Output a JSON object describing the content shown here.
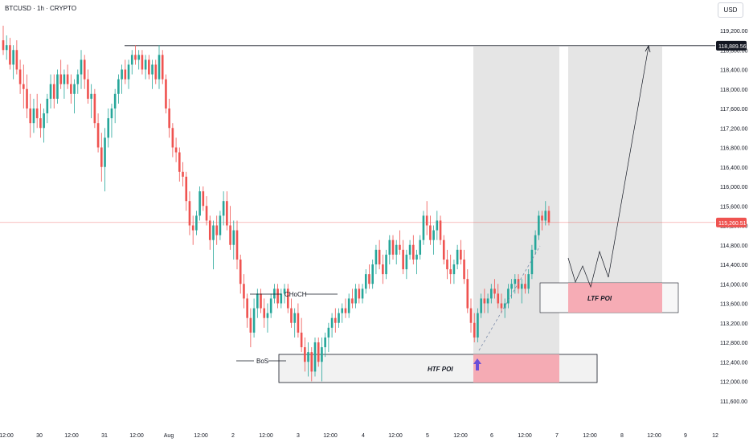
{
  "header": {
    "symbol": "BTCUSD · 1h · CRYPTO",
    "currency": "USD"
  },
  "price_labels": {
    "resistance": "118,889.56",
    "current": "115,260.51"
  },
  "annotations": {
    "choch": "CHoCH",
    "bos": "BoS",
    "htf_poi": "HTF POI",
    "ltf_poi": "LTF POI"
  },
  "chart_data": {
    "type": "candlestick",
    "instrument": "BTCUSD",
    "interval": "1h",
    "y_range": [
      111400,
      119500
    ],
    "y_ticks": [
      111600,
      112000,
      112400,
      112800,
      113200,
      113600,
      114000,
      114400,
      114800,
      115200,
      115600,
      116000,
      116400,
      116800,
      117200,
      117600,
      118000,
      118400,
      118800,
      119200
    ],
    "y_tick_labels": [
      "111,600.00",
      "112,000.00",
      "112,400.00",
      "112,800.00",
      "113,200.00",
      "113,600.00",
      "114,000.00",
      "114,400.00",
      "114,800.00",
      "115,200.00",
      "115,600.00",
      "116,000.00",
      "116,400.00",
      "116,800.00",
      "117,200.00",
      "117,600.00",
      "118,000.00",
      "118,400.00",
      "118,800.00",
      "119,200.00"
    ],
    "x_tick_labels": [
      "12:00",
      "30",
      "12:00",
      "31",
      "12:00",
      "Aug",
      "12:00",
      "2",
      "12:00",
      "3",
      "12:00",
      "4",
      "12:00",
      "5",
      "12:00",
      "6",
      "12:00",
      "7",
      "12:00",
      "8",
      "12:00",
      "9",
      "12"
    ],
    "resistance_level": 118889.56,
    "last_price": 115260.51,
    "colors": {
      "up": "#26a69a",
      "down": "#ef5350",
      "poi_fill": "#f5a3ad",
      "zone_fill": "#e0e0e0"
    },
    "bars": [
      {
        "o": 119000,
        "h": 119300,
        "l": 118700,
        "c": 118800
      },
      {
        "o": 118800,
        "h": 119100,
        "l": 118600,
        "c": 118900
      },
      {
        "o": 118900,
        "h": 119050,
        "l": 118400,
        "c": 118500
      },
      {
        "o": 118500,
        "h": 118900,
        "l": 118200,
        "c": 118800
      },
      {
        "o": 118800,
        "h": 119000,
        "l": 118300,
        "c": 118400
      },
      {
        "o": 118400,
        "h": 118600,
        "l": 117900,
        "c": 118100
      },
      {
        "o": 118100,
        "h": 118500,
        "l": 117600,
        "c": 118000
      },
      {
        "o": 118000,
        "h": 118300,
        "l": 117400,
        "c": 117600
      },
      {
        "o": 117600,
        "h": 117900,
        "l": 117000,
        "c": 117300
      },
      {
        "o": 117300,
        "h": 117800,
        "l": 117100,
        "c": 117600
      },
      {
        "o": 117600,
        "h": 117900,
        "l": 117200,
        "c": 117400
      },
      {
        "o": 117400,
        "h": 117700,
        "l": 117000,
        "c": 117200
      },
      {
        "o": 117200,
        "h": 117600,
        "l": 116900,
        "c": 117500
      },
      {
        "o": 117500,
        "h": 117900,
        "l": 117300,
        "c": 117800
      },
      {
        "o": 117800,
        "h": 118300,
        "l": 117600,
        "c": 118100
      },
      {
        "o": 118100,
        "h": 118300,
        "l": 117600,
        "c": 117800
      },
      {
        "o": 117800,
        "h": 118400,
        "l": 117700,
        "c": 118300
      },
      {
        "o": 118300,
        "h": 118600,
        "l": 118000,
        "c": 118100
      },
      {
        "o": 118100,
        "h": 118400,
        "l": 117800,
        "c": 118300
      },
      {
        "o": 118300,
        "h": 118500,
        "l": 118000,
        "c": 118100
      },
      {
        "o": 118100,
        "h": 118300,
        "l": 117700,
        "c": 117900
      },
      {
        "o": 117900,
        "h": 118200,
        "l": 117500,
        "c": 118100
      },
      {
        "o": 118100,
        "h": 118400,
        "l": 117900,
        "c": 118300
      },
      {
        "o": 118300,
        "h": 118800,
        "l": 118000,
        "c": 118600
      },
      {
        "o": 118600,
        "h": 118700,
        "l": 118000,
        "c": 118200
      },
      {
        "o": 118200,
        "h": 118400,
        "l": 117700,
        "c": 117800
      },
      {
        "o": 117800,
        "h": 118100,
        "l": 117400,
        "c": 117900
      },
      {
        "o": 117900,
        "h": 118000,
        "l": 117200,
        "c": 117300
      },
      {
        "o": 117300,
        "h": 117500,
        "l": 116700,
        "c": 116800
      },
      {
        "o": 116800,
        "h": 117100,
        "l": 116100,
        "c": 116400
      },
      {
        "o": 116400,
        "h": 117200,
        "l": 115900,
        "c": 117000
      },
      {
        "o": 117000,
        "h": 117600,
        "l": 116800,
        "c": 117400
      },
      {
        "o": 117400,
        "h": 117700,
        "l": 117000,
        "c": 117600
      },
      {
        "o": 117600,
        "h": 118000,
        "l": 117300,
        "c": 117900
      },
      {
        "o": 117900,
        "h": 118300,
        "l": 117700,
        "c": 118200
      },
      {
        "o": 118200,
        "h": 118500,
        "l": 117900,
        "c": 118400
      },
      {
        "o": 118400,
        "h": 118600,
        "l": 118100,
        "c": 118200
      },
      {
        "o": 118200,
        "h": 118600,
        "l": 118000,
        "c": 118500
      },
      {
        "o": 118500,
        "h": 118800,
        "l": 118300,
        "c": 118700
      },
      {
        "o": 118700,
        "h": 118900,
        "l": 118500,
        "c": 118600
      },
      {
        "o": 118600,
        "h": 118800,
        "l": 118400,
        "c": 118700
      },
      {
        "o": 118700,
        "h": 118800,
        "l": 118300,
        "c": 118400
      },
      {
        "o": 118400,
        "h": 118700,
        "l": 118200,
        "c": 118600
      },
      {
        "o": 118600,
        "h": 118700,
        "l": 118200,
        "c": 118300
      },
      {
        "o": 118300,
        "h": 118600,
        "l": 118000,
        "c": 118500
      },
      {
        "o": 118500,
        "h": 118600,
        "l": 118100,
        "c": 118200
      },
      {
        "o": 118200,
        "h": 118900,
        "l": 118000,
        "c": 118700
      },
      {
        "o": 118700,
        "h": 118800,
        "l": 118100,
        "c": 118200
      },
      {
        "o": 118200,
        "h": 118300,
        "l": 117500,
        "c": 117600
      },
      {
        "o": 117600,
        "h": 117800,
        "l": 117000,
        "c": 117200
      },
      {
        "o": 117200,
        "h": 117300,
        "l": 116600,
        "c": 116800
      },
      {
        "o": 116800,
        "h": 117000,
        "l": 116500,
        "c": 116700
      },
      {
        "o": 116700,
        "h": 116800,
        "l": 116100,
        "c": 116300
      },
      {
        "o": 116300,
        "h": 116500,
        "l": 116000,
        "c": 116200
      },
      {
        "o": 116200,
        "h": 116300,
        "l": 115500,
        "c": 115700
      },
      {
        "o": 115700,
        "h": 115900,
        "l": 115000,
        "c": 115200
      },
      {
        "o": 115200,
        "h": 115400,
        "l": 114800,
        "c": 115100
      },
      {
        "o": 115100,
        "h": 115500,
        "l": 115000,
        "c": 115400
      },
      {
        "o": 115400,
        "h": 116000,
        "l": 115300,
        "c": 115900
      },
      {
        "o": 115900,
        "h": 116000,
        "l": 115500,
        "c": 115600
      },
      {
        "o": 115600,
        "h": 115800,
        "l": 115200,
        "c": 115300
      },
      {
        "o": 115300,
        "h": 115400,
        "l": 114700,
        "c": 114900
      },
      {
        "o": 114900,
        "h": 115300,
        "l": 114300,
        "c": 115200
      },
      {
        "o": 115200,
        "h": 115400,
        "l": 114800,
        "c": 115000
      },
      {
        "o": 115000,
        "h": 115500,
        "l": 114900,
        "c": 115400
      },
      {
        "o": 115400,
        "h": 115900,
        "l": 115200,
        "c": 115700
      },
      {
        "o": 115700,
        "h": 115900,
        "l": 115100,
        "c": 115200
      },
      {
        "o": 115200,
        "h": 115600,
        "l": 114700,
        "c": 114800
      },
      {
        "o": 114800,
        "h": 115300,
        "l": 114500,
        "c": 115100
      },
      {
        "o": 115100,
        "h": 115300,
        "l": 114300,
        "c": 114500
      },
      {
        "o": 114500,
        "h": 114600,
        "l": 113800,
        "c": 114000
      },
      {
        "o": 114000,
        "h": 114200,
        "l": 113500,
        "c": 113700
      },
      {
        "o": 113700,
        "h": 113800,
        "l": 113100,
        "c": 113300
      },
      {
        "o": 113300,
        "h": 113500,
        "l": 112700,
        "c": 113000
      },
      {
        "o": 113000,
        "h": 113700,
        "l": 112900,
        "c": 113500
      },
      {
        "o": 113500,
        "h": 113900,
        "l": 113300,
        "c": 113800
      },
      {
        "o": 113800,
        "h": 113900,
        "l": 113400,
        "c": 113500
      },
      {
        "o": 113500,
        "h": 113700,
        "l": 113100,
        "c": 113300
      },
      {
        "o": 113300,
        "h": 113600,
        "l": 113000,
        "c": 113400
      },
      {
        "o": 113400,
        "h": 113800,
        "l": 113300,
        "c": 113700
      },
      {
        "o": 113700,
        "h": 114000,
        "l": 113600,
        "c": 113900
      },
      {
        "o": 113900,
        "h": 114000,
        "l": 113500,
        "c": 113600
      },
      {
        "o": 113600,
        "h": 113900,
        "l": 113500,
        "c": 113800
      },
      {
        "o": 113800,
        "h": 114000,
        "l": 113600,
        "c": 113900
      },
      {
        "o": 113900,
        "h": 114000,
        "l": 113400,
        "c": 113500
      },
      {
        "o": 113500,
        "h": 113700,
        "l": 113100,
        "c": 113200
      },
      {
        "o": 113200,
        "h": 113500,
        "l": 112900,
        "c": 113400
      },
      {
        "o": 113400,
        "h": 113600,
        "l": 112900,
        "c": 113000
      },
      {
        "o": 113000,
        "h": 113300,
        "l": 112600,
        "c": 112700
      },
      {
        "o": 112700,
        "h": 112900,
        "l": 112200,
        "c": 112400
      },
      {
        "o": 112400,
        "h": 112800,
        "l": 112100,
        "c": 112600
      },
      {
        "o": 112600,
        "h": 112700,
        "l": 112000,
        "c": 112200
      },
      {
        "o": 112200,
        "h": 112900,
        "l": 112100,
        "c": 112800
      },
      {
        "o": 112800,
        "h": 112900,
        "l": 112300,
        "c": 112400
      },
      {
        "o": 112400,
        "h": 112900,
        "l": 112000,
        "c": 112700
      },
      {
        "o": 112700,
        "h": 113000,
        "l": 112500,
        "c": 112900
      },
      {
        "o": 112900,
        "h": 113200,
        "l": 112600,
        "c": 113100
      },
      {
        "o": 113100,
        "h": 113400,
        "l": 112900,
        "c": 113300
      },
      {
        "o": 113300,
        "h": 113500,
        "l": 113000,
        "c": 113200
      },
      {
        "o": 113200,
        "h": 113500,
        "l": 113100,
        "c": 113400
      },
      {
        "o": 113400,
        "h": 113600,
        "l": 113200,
        "c": 113500
      },
      {
        "o": 113500,
        "h": 113700,
        "l": 113300,
        "c": 113400
      },
      {
        "o": 113400,
        "h": 113800,
        "l": 113300,
        "c": 113700
      },
      {
        "o": 113700,
        "h": 113900,
        "l": 113500,
        "c": 113600
      },
      {
        "o": 113600,
        "h": 114000,
        "l": 113500,
        "c": 113900
      },
      {
        "o": 113900,
        "h": 114000,
        "l": 113600,
        "c": 113700
      },
      {
        "o": 113700,
        "h": 114000,
        "l": 113600,
        "c": 113900
      },
      {
        "o": 113900,
        "h": 114300,
        "l": 113800,
        "c": 114200
      },
      {
        "o": 114200,
        "h": 114400,
        "l": 113900,
        "c": 114000
      },
      {
        "o": 114000,
        "h": 114500,
        "l": 113900,
        "c": 114400
      },
      {
        "o": 114400,
        "h": 114800,
        "l": 114200,
        "c": 114700
      },
      {
        "o": 114700,
        "h": 114900,
        "l": 114300,
        "c": 114400
      },
      {
        "o": 114400,
        "h": 114600,
        "l": 114000,
        "c": 114200
      },
      {
        "o": 114200,
        "h": 114700,
        "l": 114100,
        "c": 114600
      },
      {
        "o": 114600,
        "h": 115000,
        "l": 114400,
        "c": 114900
      },
      {
        "o": 114900,
        "h": 115000,
        "l": 114500,
        "c": 114600
      },
      {
        "o": 114600,
        "h": 114900,
        "l": 114400,
        "c": 114800
      },
      {
        "o": 114800,
        "h": 115100,
        "l": 114600,
        "c": 114700
      },
      {
        "o": 114700,
        "h": 114900,
        "l": 114200,
        "c": 114300
      },
      {
        "o": 114300,
        "h": 114700,
        "l": 114100,
        "c": 114600
      },
      {
        "o": 114600,
        "h": 114900,
        "l": 114500,
        "c": 114800
      },
      {
        "o": 114800,
        "h": 115000,
        "l": 114400,
        "c": 114500
      },
      {
        "o": 114500,
        "h": 114700,
        "l": 114200,
        "c": 114600
      },
      {
        "o": 114600,
        "h": 115000,
        "l": 114500,
        "c": 114900
      },
      {
        "o": 114900,
        "h": 115500,
        "l": 114800,
        "c": 115400
      },
      {
        "o": 115400,
        "h": 115700,
        "l": 115000,
        "c": 115200
      },
      {
        "o": 115200,
        "h": 115400,
        "l": 114800,
        "c": 114900
      },
      {
        "o": 114900,
        "h": 115200,
        "l": 114600,
        "c": 115100
      },
      {
        "o": 115100,
        "h": 115500,
        "l": 114900,
        "c": 115300
      },
      {
        "o": 115300,
        "h": 115400,
        "l": 114800,
        "c": 114900
      },
      {
        "o": 114900,
        "h": 115000,
        "l": 114400,
        "c": 114500
      },
      {
        "o": 114500,
        "h": 114700,
        "l": 114100,
        "c": 114300
      },
      {
        "o": 114300,
        "h": 114600,
        "l": 114000,
        "c": 114200
      },
      {
        "o": 114200,
        "h": 114500,
        "l": 114000,
        "c": 114400
      },
      {
        "o": 114400,
        "h": 114800,
        "l": 114300,
        "c": 114700
      },
      {
        "o": 114700,
        "h": 114900,
        "l": 114400,
        "c": 114500
      },
      {
        "o": 114500,
        "h": 114700,
        "l": 114000,
        "c": 114100
      },
      {
        "o": 114100,
        "h": 114300,
        "l": 113400,
        "c": 113500
      },
      {
        "o": 113500,
        "h": 113700,
        "l": 113000,
        "c": 113200
      },
      {
        "o": 113200,
        "h": 113400,
        "l": 112800,
        "c": 112900
      },
      {
        "o": 112900,
        "h": 113500,
        "l": 112800,
        "c": 113400
      },
      {
        "o": 113400,
        "h": 113800,
        "l": 113300,
        "c": 113700
      },
      {
        "o": 113700,
        "h": 113900,
        "l": 113400,
        "c": 113600
      },
      {
        "o": 113600,
        "h": 113800,
        "l": 113400,
        "c": 113700
      },
      {
        "o": 113700,
        "h": 114000,
        "l": 113600,
        "c": 113900
      },
      {
        "o": 113900,
        "h": 114100,
        "l": 113700,
        "c": 113800
      },
      {
        "o": 113800,
        "h": 114000,
        "l": 113500,
        "c": 113600
      },
      {
        "o": 113600,
        "h": 113800,
        "l": 113400,
        "c": 113500
      },
      {
        "o": 113500,
        "h": 113700,
        "l": 113300,
        "c": 113600
      },
      {
        "o": 113600,
        "h": 114000,
        "l": 113500,
        "c": 113900
      },
      {
        "o": 113900,
        "h": 114100,
        "l": 113700,
        "c": 114000
      },
      {
        "o": 114000,
        "h": 114200,
        "l": 113800,
        "c": 114100
      },
      {
        "o": 114100,
        "h": 114200,
        "l": 113800,
        "c": 113900
      },
      {
        "o": 113900,
        "h": 114100,
        "l": 113600,
        "c": 114000
      },
      {
        "o": 114000,
        "h": 114200,
        "l": 113800,
        "c": 113900
      },
      {
        "o": 113900,
        "h": 114300,
        "l": 113800,
        "c": 114200
      },
      {
        "o": 114200,
        "h": 114800,
        "l": 114100,
        "c": 114700
      },
      {
        "o": 114700,
        "h": 115100,
        "l": 114600,
        "c": 115000
      },
      {
        "o": 115000,
        "h": 115500,
        "l": 114900,
        "c": 115400
      },
      {
        "o": 115400,
        "h": 115500,
        "l": 115100,
        "c": 115300
      },
      {
        "o": 115300,
        "h": 115700,
        "l": 115200,
        "c": 115500
      },
      {
        "o": 115500,
        "h": 115600,
        "l": 115200,
        "c": 115260.51
      }
    ]
  }
}
